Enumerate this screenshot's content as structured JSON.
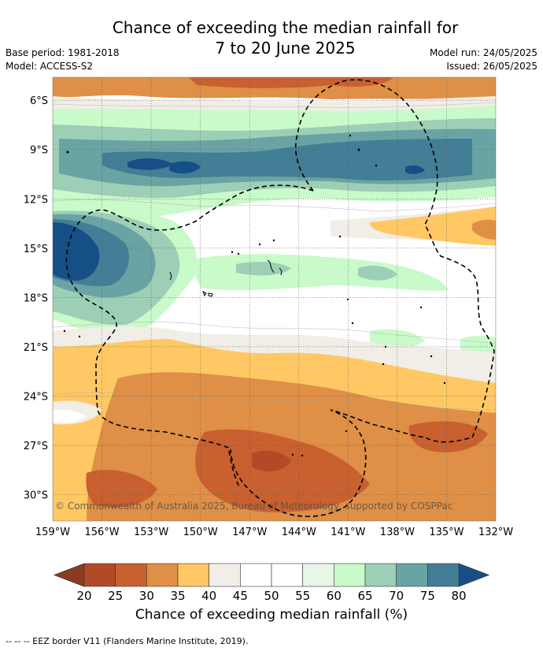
{
  "header": {
    "title_line1": "Chance of exceeding the median rainfall for",
    "title_line2": "7 to 20 June 2025",
    "base_period": "Base period: 1981-2018",
    "model": "Model: ACCESS-S2",
    "model_run": "Model run: 24/05/2025",
    "issued": "Issued: 26/05/2025"
  },
  "map": {
    "lat_labels": [
      "6°S",
      "9°S",
      "12°S",
      "15°S",
      "18°S",
      "21°S",
      "24°S",
      "27°S",
      "30°S"
    ],
    "lat_values": [
      -6,
      -9,
      -12,
      -15,
      -18,
      -21,
      -24,
      -27,
      -30
    ],
    "lon_labels": [
      "159°W",
      "156°W",
      "153°W",
      "150°W",
      "147°W",
      "144°W",
      "141°W",
      "138°W",
      "135°W",
      "132°W"
    ],
    "lon_values": [
      -159,
      -156,
      -153,
      -150,
      -147,
      -144,
      -141,
      -138,
      -135,
      -132
    ],
    "lat_range": [
      -31.6,
      -4.6
    ],
    "lon_range": [
      -159,
      -132
    ],
    "copyright": "© Commonwealth of Australia 2025, Bureau of Meteorology, supported by COSPPac"
  },
  "colorbar": {
    "ticks": [
      "20",
      "25",
      "30",
      "35",
      "40",
      "45",
      "50",
      "55",
      "60",
      "65",
      "70",
      "75",
      "80"
    ],
    "colors": [
      "#b24a27",
      "#c9602f",
      "#df8f46",
      "#ffc864",
      "#f1ede7",
      "#ffffff",
      "#ffffff",
      "#e8f5e8",
      "#c9fac9",
      "#9ccfb6",
      "#6aa3a3",
      "#437e97"
    ],
    "low_color": "#8c3a20",
    "high_color": "#164f86",
    "label": "Chance of exceeding median rainfall (%)"
  },
  "footnote": "--  --  -- EEZ border V11 (Flanders Marine Institute, 2019)."
}
